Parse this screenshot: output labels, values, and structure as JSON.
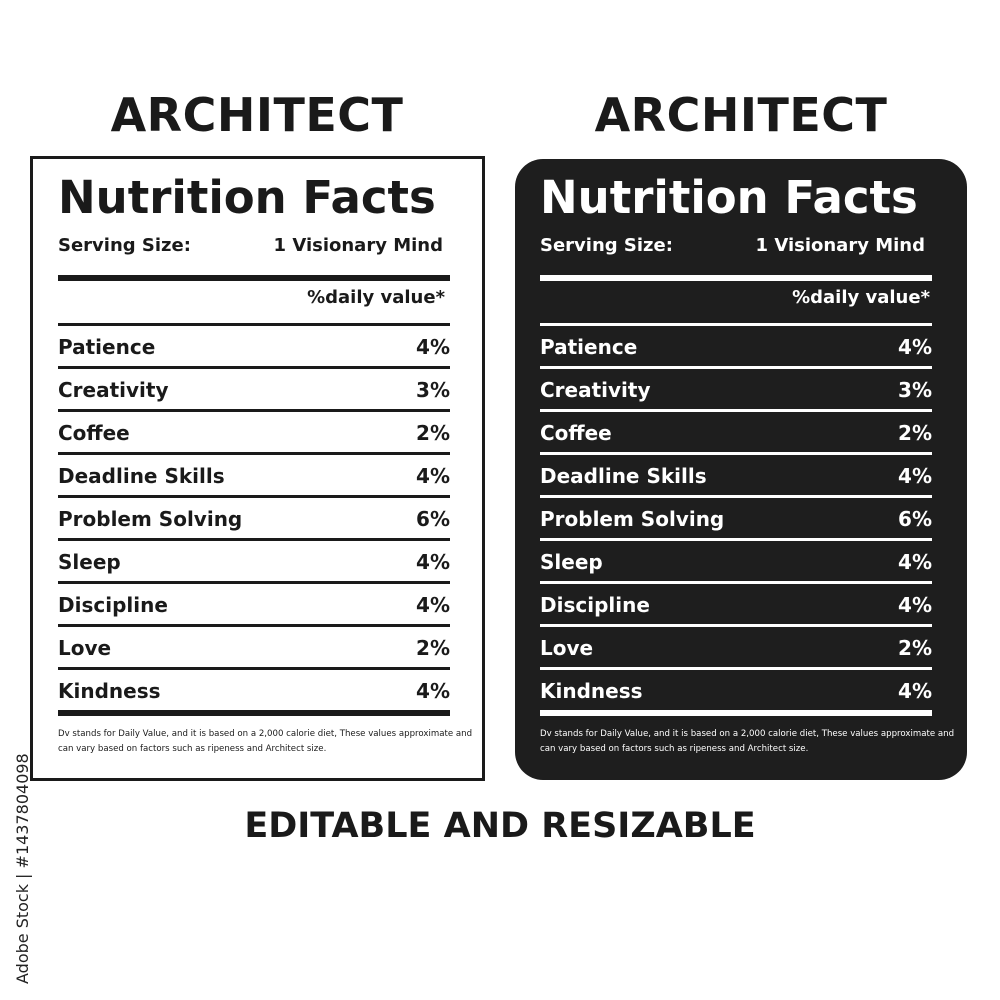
{
  "title": "ARCHITECT",
  "label": {
    "heading": "Nutrition Facts",
    "serving_label": "Serving Size:",
    "serving_value": "1 Visionary Mind",
    "daily_value_header": "%daily value*",
    "rows": [
      {
        "name": "Patience",
        "value": "4%"
      },
      {
        "name": "Creativity",
        "value": "3%"
      },
      {
        "name": "Coffee",
        "value": "2%"
      },
      {
        "name": "Deadline Skills",
        "value": "4%"
      },
      {
        "name": "Problem Solving",
        "value": "6%"
      },
      {
        "name": "Sleep",
        "value": "4%"
      },
      {
        "name": "Discipline",
        "value": "4%"
      },
      {
        "name": "Love",
        "value": "2%"
      },
      {
        "name": "Kindness",
        "value": "4%"
      }
    ],
    "footnote": "Dv stands for Daily Value, and it is based on a 2,000 calorie diet, These values approximate and can vary based on factors such as ripeness and Architect size."
  },
  "footer": "EDITABLE AND RESIZABLE",
  "stock_id": "Adobe Stock | #1437804098",
  "colors": {
    "dark_panel": "#1e1e1e",
    "text": "#1a1a1a",
    "light_panel": "#ffffff"
  }
}
